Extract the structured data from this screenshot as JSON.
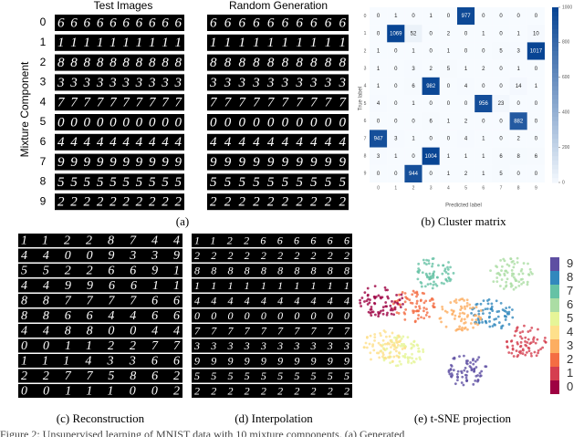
{
  "panel_a": {
    "col_titles": [
      "Test Images",
      "Random Generation"
    ],
    "y_label": "Mixture Component",
    "row_labels": [
      "0",
      "1",
      "2",
      "3",
      "4",
      "5",
      "6",
      "7",
      "8",
      "9"
    ],
    "test_rows": [
      "6666666666",
      "1111111111",
      "8888888888",
      "3333333333",
      "7777777777",
      "0000000000",
      "4444444444",
      "9999999999",
      "5555555555",
      "2222222222"
    ],
    "gen_rows": [
      "6666666666",
      "1111111111",
      "8888888888",
      "3333333333",
      "7777777777",
      "0000000000",
      "4444444444",
      "9999999999",
      "5555555555",
      "2222222222"
    ],
    "caption": "(a)"
  },
  "panel_b": {
    "caption": "(b) Cluster matrix",
    "x_label": "Predicted label",
    "y_label": "True label",
    "labels": [
      "0",
      "1",
      "2",
      "3",
      "4",
      "5",
      "6",
      "7",
      "8",
      "9"
    ],
    "matrix": [
      [
        0,
        1,
        0,
        1,
        0,
        977,
        0,
        0,
        0,
        0
      ],
      [
        0,
        1069,
        52,
        0,
        2,
        0,
        1,
        0,
        1,
        10
      ],
      [
        1,
        0,
        1,
        0,
        1,
        0,
        0,
        5,
        3,
        1017
      ],
      [
        1,
        0,
        3,
        2,
        5,
        1,
        2,
        0,
        1,
        0
      ],
      [
        1,
        0,
        6,
        982,
        0,
        4,
        0,
        0,
        14,
        1
      ],
      [
        4,
        0,
        1,
        0,
        0,
        0,
        956,
        23,
        0,
        0
      ],
      [
        0,
        0,
        0,
        6,
        1,
        2,
        0,
        0,
        882,
        0
      ],
      [
        947,
        3,
        1,
        0,
        0,
        4,
        1,
        0,
        2,
        0
      ],
      [
        3,
        1,
        0,
        1004,
        1,
        1,
        1,
        6,
        8,
        6
      ],
      [
        0,
        0,
        944,
        0,
        1,
        2,
        1,
        5,
        0,
        0
      ]
    ],
    "colorbar_ticks": [
      0,
      200,
      400,
      600,
      800,
      1000
    ]
  },
  "panel_c": {
    "caption": "(c) Reconstruction",
    "rows": [
      "11228744",
      "44009339",
      "55226691",
      "44996611",
      "88777766",
      "88664466",
      "44880044",
      "00112277",
      "11143366",
      "22775862",
      "00111002"
    ]
  },
  "panel_d": {
    "caption": "(d) Interpolation",
    "rows": [
      "1122666666",
      "2222222222",
      "8888888888",
      "1111111111",
      "4444444444",
      "0000000000",
      "7777777777",
      "3333333333",
      "9999999999",
      "5555555555",
      "2222222222"
    ]
  },
  "panel_e": {
    "caption": "(e) t-SNE projection",
    "legend_labels": [
      9,
      8,
      7,
      6,
      5,
      4,
      3,
      2,
      1,
      0
    ],
    "legend_colors": [
      "#5e4fa2",
      "#3288bd",
      "#66c2a5",
      "#abdda4",
      "#e6f598",
      "#fee08b",
      "#fdae61",
      "#f46d43",
      "#d53e4f",
      "#9e0142"
    ]
  },
  "figure_caption": "Figure 2: Unsupervised learning of MNIST data with 10 mixture components. (a) Generated"
}
